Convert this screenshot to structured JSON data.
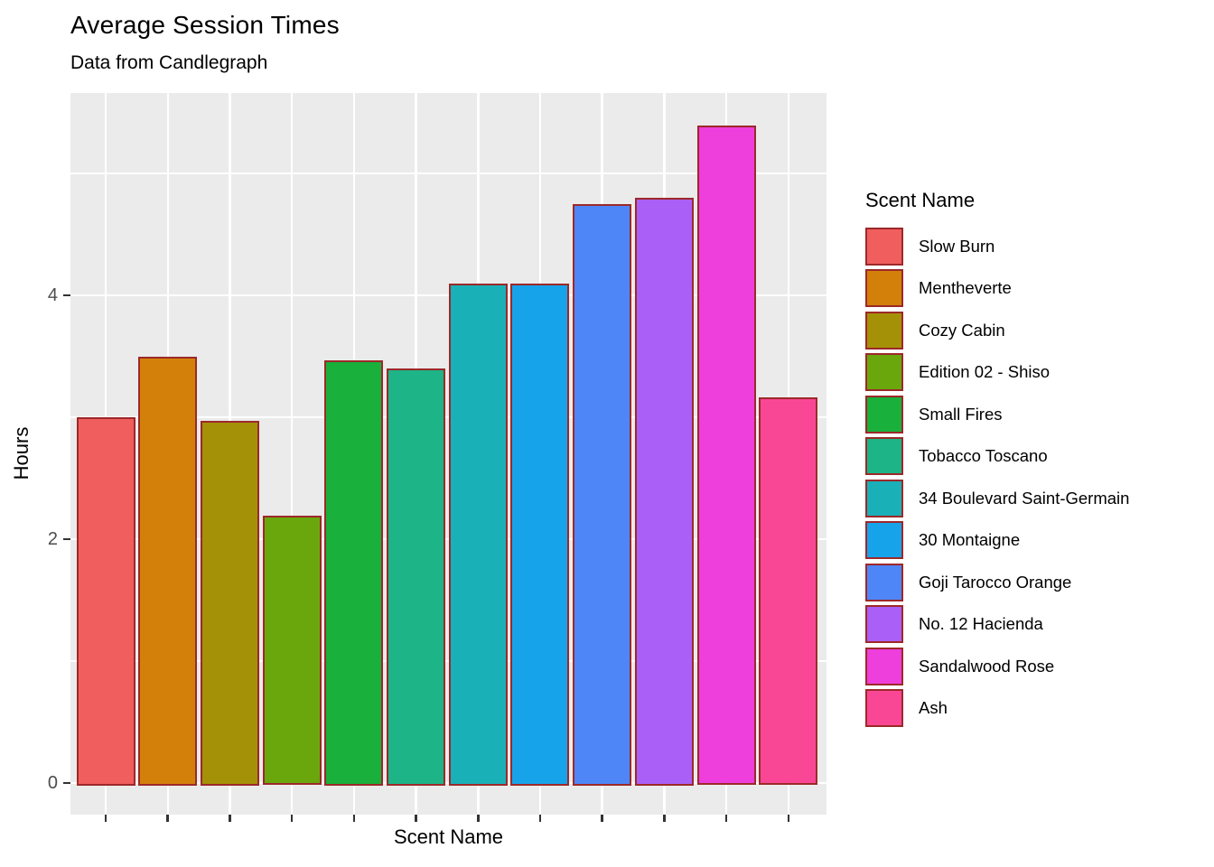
{
  "title": "Average Session Times",
  "subtitle": "Data from Candlegraph",
  "chart_data": {
    "type": "bar",
    "title": "Average Session Times",
    "subtitle": "Data from Candlegraph",
    "xlabel": "Scent Name",
    "ylabel": "Hours",
    "legend_title": "Scent Name",
    "legend_position": "right",
    "ylim": [
      0,
      5.66
    ],
    "yticks": [
      0,
      2,
      4
    ],
    "y_tick_labels": [
      "0",
      "2",
      "4"
    ],
    "minor_gridlines": [
      1,
      3,
      5
    ],
    "grid": true,
    "panel_bg": "#EBEBEB",
    "gridline_color": "#FFFFFF",
    "bar_border_color": "#9C2929",
    "axis_text_color": "#4D4D4D",
    "categories": [
      "Slow Burn",
      "Mentheverte",
      "Cozy Cabin",
      "Edition 02 - Shiso",
      "Small Fires",
      "Tobacco Toscano",
      "34 Boulevard Saint-Germain",
      "30 Montaigne",
      "Goji Tarocco Orange",
      "No. 12 Hacienda",
      "Sandalwood Rose",
      "Ash"
    ],
    "values": [
      3.0,
      3.5,
      2.97,
      2.19,
      3.47,
      3.4,
      4.1,
      4.1,
      4.75,
      4.8,
      5.39,
      3.16
    ],
    "colors": [
      "#F15E5E",
      "#D3800B",
      "#A59107",
      "#6AA70D",
      "#19B03C",
      "#1DB487",
      "#19B0B8",
      "#17A3EA",
      "#4F86F7",
      "#AA60F6",
      "#EE3EDC",
      "#FA4795"
    ]
  }
}
